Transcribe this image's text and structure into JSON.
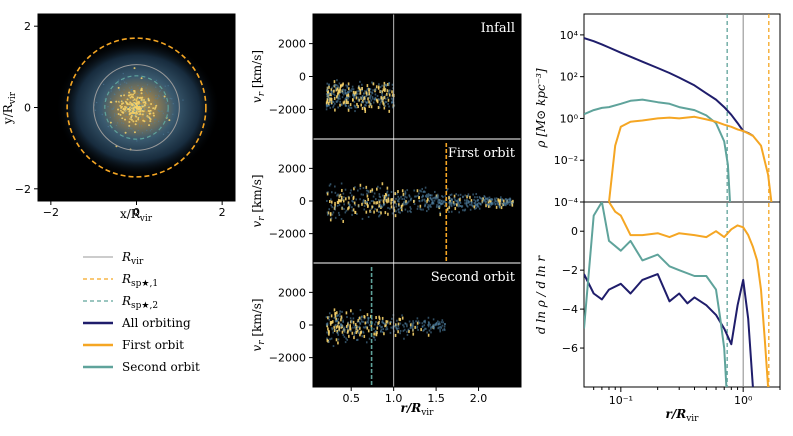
{
  "colors": {
    "all_orbiting": "#1f1d6b",
    "first_orbit": "#f5a623",
    "second_orbit": "#5fa39b",
    "rvir": "#9a9a9a",
    "rsp1": "#f5a623",
    "rsp2": "#5fa39b",
    "panel_bg": "#000000",
    "star_bright": "#f7d36a",
    "star_dim": "#4f7fa0"
  },
  "map_panel": {
    "xlabel": "x/R",
    "xlabel_sub": "vir",
    "ylabel": "y/R",
    "ylabel_sub": "vir",
    "xticks": [
      "−2",
      "0",
      "2"
    ],
    "yticks": [
      "2",
      "0",
      "−2"
    ],
    "rvir": 1.0,
    "rsp1": 1.62,
    "rsp2": 0.74
  },
  "phase_panels": [
    {
      "title": "Infall",
      "ylabel": "v",
      "ylabel_sub": "r",
      "ylabel_unit": " [km/s]",
      "yticks": [
        "2000",
        "0",
        "−2000"
      ],
      "rsp_line": null
    },
    {
      "title": "First orbit",
      "ylabel": "v",
      "ylabel_sub": "r",
      "ylabel_unit": " [km/s]",
      "yticks": [
        "2000",
        "0",
        "−2000"
      ],
      "rsp_line": "rsp1"
    },
    {
      "title": "Second orbit",
      "ylabel": "v",
      "ylabel_sub": "r",
      "ylabel_unit": " [km/s]",
      "yticks": [
        "2000",
        "0",
        "−2000"
      ],
      "rsp_line": "rsp2"
    }
  ],
  "phase_xticks": [
    "0.5",
    "1.0",
    "1.5",
    "2.0"
  ],
  "phase_xlabel": "r/R",
  "phase_xlabel_sub": "vir",
  "legend": [
    {
      "label": "R",
      "sub": "vir",
      "style": "solid-thin",
      "color_key": "rvir"
    },
    {
      "label": "R",
      "sub": "sp★,1",
      "style": "dashed",
      "color_key": "rsp1"
    },
    {
      "label": "R",
      "sub": "sp★,2",
      "style": "dashed",
      "color_key": "rsp2"
    },
    {
      "label": "All orbiting",
      "sub": "",
      "style": "solid-thick",
      "color_key": "all_orbiting"
    },
    {
      "label": "First orbit",
      "sub": "",
      "style": "solid-thick",
      "color_key": "first_orbit"
    },
    {
      "label": "Second orbit",
      "sub": "",
      "style": "solid-thick",
      "color_key": "second_orbit"
    }
  ],
  "profile_panels": {
    "top": {
      "ylabel": "ρ [M⊙ kpc⁻³]",
      "yticks": [
        "10⁴",
        "10²",
        "10⁰",
        "10⁻²",
        "10⁻⁴"
      ]
    },
    "bottom": {
      "ylabel": "d ln ρ / d ln r",
      "yticks": [
        "0",
        "−2",
        "−4",
        "−6"
      ]
    },
    "xticks": [
      "10⁻¹",
      "10⁰"
    ],
    "xlabel": "r/R",
    "xlabel_sub": "vir"
  },
  "chart_data": [
    {
      "type": "heatmap",
      "xlim": [
        -2.3,
        2.3
      ],
      "ylim": [
        -2.3,
        2.3
      ],
      "circles": [
        {
          "ref": "rvir",
          "radius": 1.0
        },
        {
          "ref": "rsp1",
          "radius": 1.62
        },
        {
          "ref": "rsp2",
          "radius": 0.74
        }
      ]
    },
    {
      "type": "scatter",
      "xlim": [
        0.05,
        2.5
      ],
      "ylim": [
        -3800,
        3800
      ],
      "vlines": [
        {
          "ref": "rvir",
          "x": 1.0
        },
        {
          "ref": "rsp1",
          "x": 1.62
        },
        {
          "ref": "rsp2",
          "x": 0.74
        }
      ]
    },
    {
      "type": "line",
      "log_x": true,
      "log_y": true,
      "xlim": [
        0.05,
        2.0
      ],
      "ylim": [
        0.0001,
        100000
      ],
      "vlines": [
        {
          "ref": "rvir",
          "x": 1.0
        },
        {
          "ref": "rsp1",
          "x": 1.62
        },
        {
          "ref": "rsp2",
          "x": 0.74
        }
      ],
      "series": [
        {
          "name": "All orbiting",
          "color_key": "all_orbiting",
          "x": [
            0.05,
            0.06,
            0.07,
            0.08,
            0.1,
            0.12,
            0.15,
            0.2,
            0.25,
            0.3,
            0.4,
            0.5,
            0.6,
            0.7,
            0.8,
            0.9,
            1.0,
            1.1,
            1.2
          ],
          "y": [
            7000,
            5000,
            3500,
            2500,
            1400,
            900,
            520,
            260,
            150,
            90,
            38,
            16,
            8,
            3.5,
            1.5,
            0.6,
            0.25,
            0.2,
            0.15
          ]
        },
        {
          "name": "Second orbit",
          "color_key": "second_orbit",
          "x": [
            0.05,
            0.06,
            0.07,
            0.08,
            0.1,
            0.12,
            0.15,
            0.2,
            0.25,
            0.3,
            0.4,
            0.5,
            0.6,
            0.7,
            0.75,
            0.78
          ],
          "y": [
            1.6,
            2.5,
            3.2,
            3.5,
            5,
            7,
            8,
            6,
            5,
            3.5,
            2.5,
            1.4,
            0.6,
            0.08,
            0.006,
            0.0001
          ]
        },
        {
          "name": "First orbit",
          "color_key": "first_orbit",
          "x": [
            0.08,
            0.09,
            0.1,
            0.12,
            0.15,
            0.2,
            0.25,
            0.3,
            0.4,
            0.5,
            0.6,
            0.7,
            0.8,
            0.9,
            1.0,
            1.2,
            1.4,
            1.6,
            1.7
          ],
          "y": [
            0.0001,
            0.05,
            0.4,
            0.7,
            0.8,
            1.0,
            1.1,
            1.0,
            1.2,
            0.9,
            0.7,
            0.5,
            0.4,
            0.3,
            0.25,
            0.15,
            0.05,
            0.002,
            0.0001
          ]
        }
      ]
    },
    {
      "type": "line",
      "log_x": true,
      "xlim": [
        0.05,
        2.0
      ],
      "ylim": [
        -8,
        1.5
      ],
      "series": [
        {
          "name": "All orbiting",
          "color_key": "all_orbiting",
          "x": [
            0.05,
            0.06,
            0.07,
            0.08,
            0.1,
            0.12,
            0.15,
            0.2,
            0.25,
            0.3,
            0.35,
            0.4,
            0.5,
            0.6,
            0.7,
            0.8,
            0.9,
            1.0,
            1.1,
            1.2
          ],
          "y": [
            -2.2,
            -3.2,
            -3.5,
            -3.0,
            -2.7,
            -3.2,
            -2.5,
            -2.2,
            -3.6,
            -3.2,
            -3.7,
            -3.4,
            -3.8,
            -4.3,
            -5.0,
            -5.8,
            -3.8,
            -2.5,
            -4.5,
            -8
          ]
        },
        {
          "name": "Second orbit",
          "color_key": "second_orbit",
          "x": [
            0.05,
            0.06,
            0.07,
            0.08,
            0.1,
            0.12,
            0.15,
            0.2,
            0.25,
            0.3,
            0.4,
            0.5,
            0.6,
            0.65,
            0.7,
            0.73
          ],
          "y": [
            -5,
            0.8,
            1.5,
            -0.5,
            -1.0,
            -0.5,
            -1.5,
            -1.2,
            -1.8,
            -2.0,
            -2.3,
            -2.3,
            -3.0,
            -4.5,
            -6.0,
            -8
          ]
        },
        {
          "name": "First orbit",
          "color_key": "first_orbit",
          "x": [
            0.08,
            0.09,
            0.1,
            0.12,
            0.15,
            0.2,
            0.25,
            0.3,
            0.4,
            0.5,
            0.6,
            0.7,
            0.8,
            0.9,
            1.0,
            1.1,
            1.2,
            1.3,
            1.4,
            1.5,
            1.6
          ],
          "y": [
            1.5,
            1.0,
            0.8,
            -0.2,
            -0.2,
            -0.1,
            -0.3,
            -0.1,
            -0.2,
            -0.3,
            0.0,
            -0.3,
            0.1,
            0.3,
            0.2,
            -0.2,
            -0.8,
            -1.5,
            -3.0,
            -5.5,
            -8
          ]
        }
      ]
    }
  ]
}
